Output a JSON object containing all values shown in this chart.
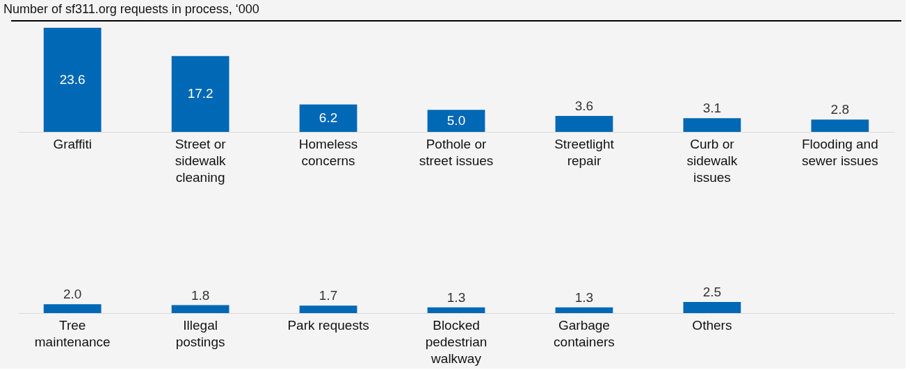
{
  "chart_data": [
    {
      "type": "bar",
      "title": "Number of sf311.org requests in process, ‘000",
      "categories": [
        "Graffiti",
        "Street or sidewalk cleaning",
        "Homeless concerns",
        "Pothole or street issues",
        "Streetlight repair",
        "Curb or sidewalk issues",
        "Flooding and sewer issues"
      ],
      "values": [
        23.6,
        17.2,
        6.2,
        5.0,
        3.6,
        3.1,
        2.8
      ],
      "value_labels": [
        "23.6",
        "17.2",
        "6.2",
        "5.0",
        "3.6",
        "3.1",
        "2.8"
      ],
      "color": "#0068b5",
      "tick_labels": "x",
      "grid": false
    },
    {
      "type": "bar",
      "categories": [
        "Tree maintenance",
        "Illegal postings",
        "Park requests",
        "Blocked pedestrian walkway",
        "Garbage containers",
        "Others"
      ],
      "values": [
        2.0,
        1.8,
        1.7,
        1.3,
        1.3,
        2.5
      ],
      "value_labels": [
        "2.0",
        "1.8",
        "1.7",
        "1.3",
        "1.3",
        "2.5"
      ],
      "color": "#0068b5",
      "tick_labels": "x",
      "grid": false
    }
  ]
}
